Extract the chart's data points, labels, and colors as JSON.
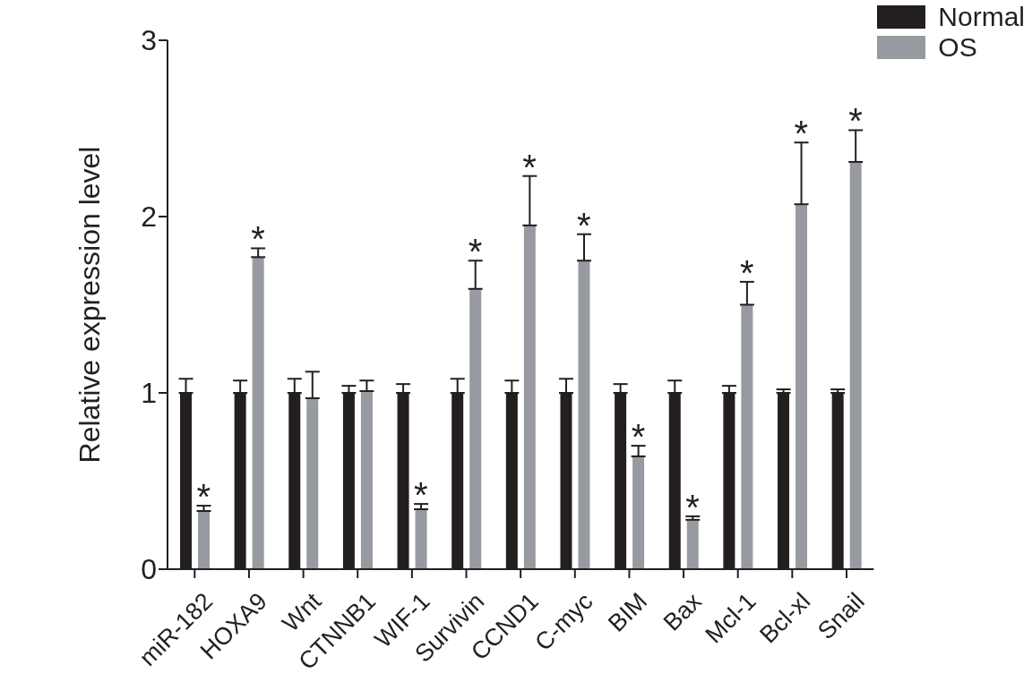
{
  "chart_data": {
    "type": "bar",
    "ylabel": "Relative expression level",
    "categories": [
      "miR-182",
      "HOXA9",
      "Wnt",
      "CTNNB1",
      "WIF-1",
      "Survivin",
      "CCND1",
      "C-myc",
      "BIM",
      "Bax",
      "Mcl-1",
      "Bcl-xl",
      "Snail"
    ],
    "series": [
      {
        "name": "Normal",
        "color": "#231f20",
        "values": [
          1,
          1,
          1,
          1,
          1,
          1,
          1,
          1,
          1,
          1,
          1,
          1,
          1
        ],
        "errors": [
          [
            1,
            1.08
          ],
          [
            1,
            1.07
          ],
          [
            1,
            1.08
          ],
          [
            1,
            1.04
          ],
          [
            1,
            1.05
          ],
          [
            1,
            1.08
          ],
          [
            1,
            1.07
          ],
          [
            1,
            1.08
          ],
          [
            1,
            1.05
          ],
          [
            1,
            1.07
          ],
          [
            1,
            1.04
          ],
          [
            1,
            1.02
          ],
          [
            1,
            1.02
          ]
        ]
      },
      {
        "name": "OS",
        "color": "#979aa1",
        "values": [
          0.33,
          1.77,
          0.97,
          1.01,
          0.34,
          1.59,
          1.95,
          1.75,
          0.64,
          0.28,
          1.5,
          2.07,
          2.31
        ],
        "errors": [
          [
            0.33,
            0.36
          ],
          [
            1.77,
            1.82
          ],
          [
            0.97,
            1.12
          ],
          [
            1.01,
            1.07
          ],
          [
            0.34,
            0.37
          ],
          [
            1.59,
            1.75
          ],
          [
            1.95,
            2.23
          ],
          [
            1.75,
            1.9
          ],
          [
            0.64,
            0.7
          ],
          [
            0.28,
            0.3
          ],
          [
            1.5,
            1.63
          ],
          [
            2.07,
            2.42
          ],
          [
            2.31,
            2.49
          ]
        ]
      }
    ],
    "annotations": [
      {
        "text": "*",
        "x": "miR-182",
        "y": 0.36
      },
      {
        "text": "*",
        "x": "HOXA9",
        "y": 1.82
      },
      {
        "text": "*",
        "x": "WIF-1",
        "y": 0.37
      },
      {
        "text": "*",
        "x": "Survivin",
        "y": 1.75
      },
      {
        "text": "*",
        "x": "CCND1",
        "y": 2.23
      },
      {
        "text": "*",
        "x": "C-myc",
        "y": 1.9
      },
      {
        "text": "*",
        "x": "BIM",
        "y": 0.7
      },
      {
        "text": "*",
        "x": "Bax",
        "y": 0.3
      },
      {
        "text": "*",
        "x": "Mcl-1",
        "y": 1.63
      },
      {
        "text": "*",
        "x": "Bcl-xl",
        "y": 2.42
      },
      {
        "text": "*",
        "x": "Snail",
        "y": 2.49
      }
    ],
    "ylim": [
      0,
      3
    ],
    "yticks": [
      0,
      1,
      2,
      3
    ],
    "legend": "top right"
  }
}
